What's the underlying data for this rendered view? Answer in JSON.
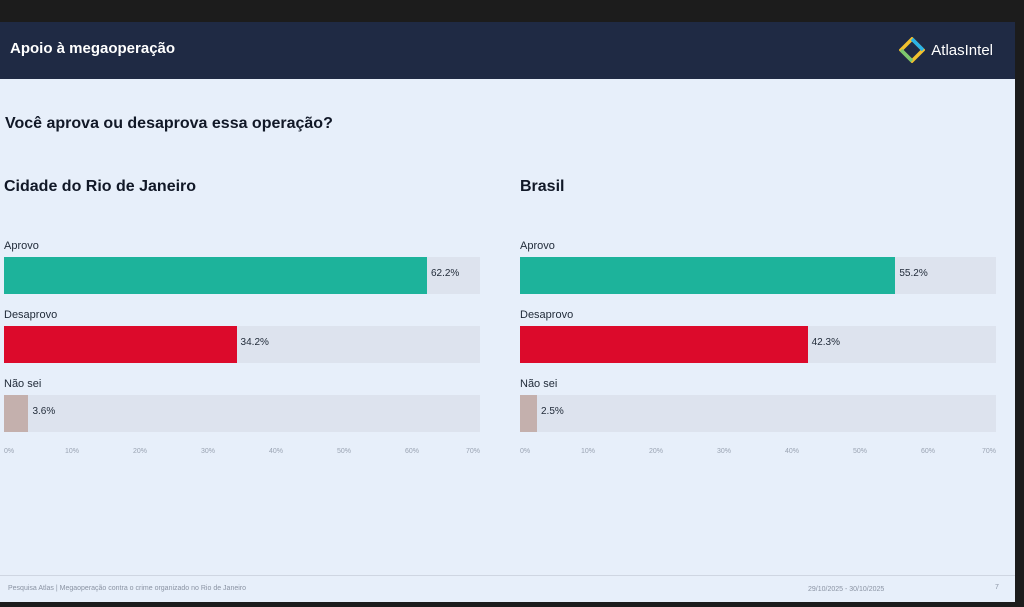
{
  "header": {
    "title": "Apoio à megaoperação",
    "brand": "AtlasIntel"
  },
  "question": "Você aprova ou desaprova essa operação?",
  "colors": {
    "aprovo": "#1db39b",
    "desaprovo": "#dc0a2b",
    "nao_sei": "#c4b0ad",
    "track": "#dde3ee"
  },
  "chart_data": [
    {
      "type": "bar",
      "orientation": "horizontal",
      "title": "Cidade do Rio de Janeiro",
      "categories": [
        "Aprovo",
        "Desaprovo",
        "Não sei"
      ],
      "values": [
        62.2,
        34.2,
        3.6
      ],
      "value_labels": [
        "62.2%",
        "34.2%",
        "3.6%"
      ],
      "xlim": [
        0,
        70
      ],
      "ticks": [
        "0%",
        "10%",
        "20%",
        "30%",
        "40%",
        "50%",
        "60%",
        "70%"
      ]
    },
    {
      "type": "bar",
      "orientation": "horizontal",
      "title": "Brasil",
      "categories": [
        "Aprovo",
        "Desaprovo",
        "Não sei"
      ],
      "values": [
        55.2,
        42.3,
        2.5
      ],
      "value_labels": [
        "55.2%",
        "42.3%",
        "2.5%"
      ],
      "xlim": [
        0,
        70
      ],
      "ticks": [
        "0%",
        "10%",
        "20%",
        "30%",
        "40%",
        "50%",
        "60%",
        "70%"
      ]
    }
  ],
  "footer": {
    "source": "Pesquisa Atlas | Megaoperação contra o crime organizado no Rio de Janeiro",
    "date": "29/10/2025 - 30/10/2025",
    "page": "7"
  }
}
